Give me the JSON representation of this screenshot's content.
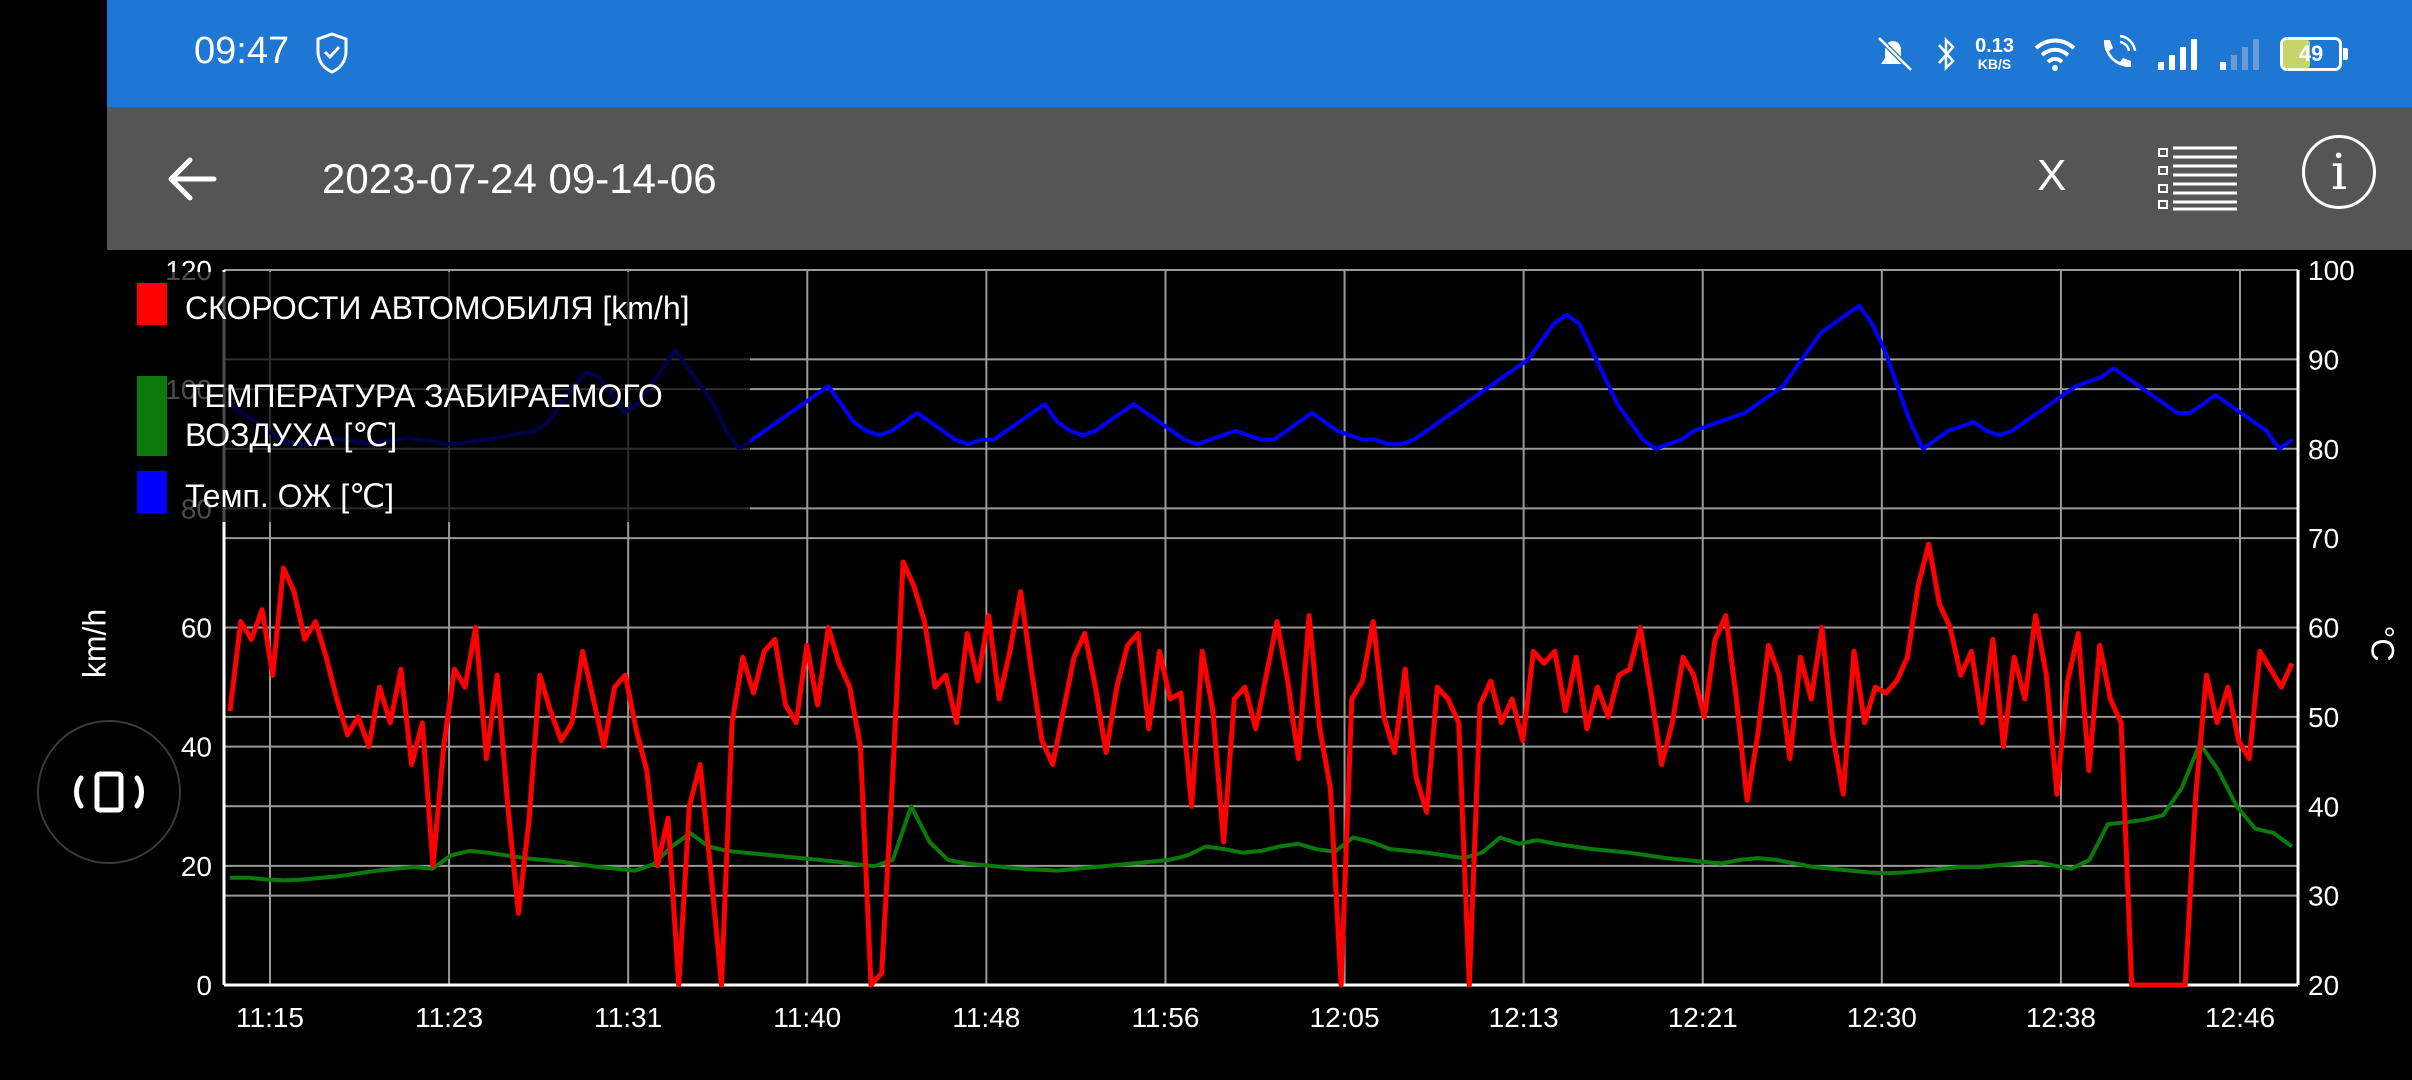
{
  "statusbar": {
    "time": "09:47",
    "net_speed_value": "0.13",
    "net_speed_unit": "KB/S",
    "battery": "49"
  },
  "appbar": {
    "title": "2023-07-24 09-14-06",
    "x_label": "X",
    "info_label": "i"
  },
  "chart_data": {
    "type": "line",
    "x_ticks": [
      "11:15",
      "11:23",
      "11:31",
      "11:40",
      "11:48",
      "11:56",
      "12:05",
      "12:13",
      "12:21",
      "12:30",
      "12:38",
      "12:46"
    ],
    "left_axis": {
      "label": "km/h",
      "range": [
        0,
        120
      ],
      "ticks": [
        0,
        20,
        40,
        60,
        80,
        100,
        120
      ]
    },
    "right_axis": {
      "label": "°C",
      "range": [
        20,
        100
      ],
      "ticks": [
        20,
        30,
        40,
        50,
        60,
        70,
        80,
        90,
        100
      ]
    },
    "grid": true,
    "legend_position": "top-left",
    "series": [
      {
        "name": "СКОРОСТИ АВТОМОБИЛЯ [km/h]",
        "axis": "left",
        "color": "#ff0000",
        "values": [
          46,
          61,
          58,
          63,
          52,
          70,
          66,
          58,
          61,
          55,
          48,
          42,
          45,
          40,
          50,
          44,
          53,
          37,
          44,
          20,
          40,
          53,
          50,
          60,
          38,
          52,
          30,
          12,
          28,
          52,
          46,
          41,
          44,
          56,
          48,
          40,
          50,
          52,
          43,
          36,
          20,
          28,
          0,
          30,
          37,
          19,
          0,
          44,
          55,
          49,
          56,
          58,
          47,
          44,
          57,
          47,
          60,
          54,
          50,
          40,
          0,
          2,
          34,
          71,
          67,
          61,
          50,
          52,
          44,
          59,
          51,
          62,
          48,
          56,
          66,
          53,
          41,
          37,
          46,
          55,
          59,
          50,
          39,
          50,
          57,
          59,
          43,
          56,
          48,
          49,
          30,
          56,
          46,
          24,
          48,
          50,
          43,
          52,
          61,
          51,
          38,
          62,
          43,
          33,
          0,
          48,
          51,
          61,
          45,
          39,
          53,
          35,
          29,
          50,
          48,
          44,
          0,
          47,
          51,
          44,
          48,
          41,
          56,
          54,
          56,
          46,
          55,
          43,
          50,
          45,
          52,
          53,
          60,
          49,
          37,
          44,
          55,
          52,
          45,
          58,
          62,
          48,
          31,
          42,
          57,
          52,
          38,
          55,
          48,
          60,
          42,
          32,
          56,
          44,
          50,
          49,
          51,
          55,
          67,
          74,
          64,
          60,
          52,
          56,
          44,
          58,
          40,
          55,
          48,
          62,
          52,
          32,
          51,
          59,
          36,
          57,
          48,
          44,
          0,
          0,
          0,
          0,
          0,
          0,
          32,
          52,
          44,
          50,
          41,
          38,
          56,
          53,
          50,
          54
        ]
      },
      {
        "name": "ТЕМПЕРАТУРА ЗАБИРАЕМОГО ВОЗДУХА [℃]",
        "axis": "right",
        "color": "#0a7a0a",
        "values": [
          32,
          32,
          31.8,
          31.7,
          31.8,
          32,
          32.2,
          32.5,
          32.8,
          33,
          33.2,
          33,
          34.5,
          35,
          34.8,
          34.5,
          34.2,
          34,
          33.8,
          33.5,
          33.2,
          33,
          32.8,
          33.5,
          35.5,
          37,
          35.5,
          35,
          34.8,
          34.6,
          34.4,
          34.2,
          34,
          33.8,
          33.5,
          33.3,
          34,
          40,
          36,
          34,
          33.6,
          33.4,
          33.2,
          33,
          32.9,
          32.8,
          33,
          33.2,
          33.4,
          33.6,
          33.8,
          34,
          34.5,
          35.5,
          35.2,
          34.8,
          35,
          35.5,
          35.8,
          35.2,
          34.9,
          36.5,
          36,
          35.2,
          35,
          34.8,
          34.5,
          34.2,
          34.8,
          36.5,
          35.8,
          36.2,
          35.8,
          35.5,
          35.2,
          35,
          34.8,
          34.5,
          34.2,
          34,
          33.8,
          33.6,
          34,
          34.2,
          34,
          33.6,
          33.2,
          33,
          32.8,
          32.6,
          32.5,
          32.6,
          32.8,
          33,
          33.2,
          33.2,
          33.4,
          33.6,
          33.8,
          33.4,
          33,
          34,
          38,
          38.2,
          38.5,
          39,
          42,
          47,
          44,
          40,
          37.5,
          37,
          35.5
        ]
      },
      {
        "name": "Темп. ОЖ [℃]",
        "axis": "right",
        "color": "#0000ff",
        "values": [
          85,
          84,
          83,
          82,
          81,
          80.5,
          80.5,
          81,
          81.2,
          81,
          80.8,
          80.6,
          80.8,
          81,
          81.2,
          81,
          80.8,
          80.5,
          80.6,
          80.8,
          81,
          81.2,
          81.5,
          81.8,
          82,
          83,
          85,
          87,
          88.5,
          88,
          86,
          84,
          85,
          87,
          89,
          91,
          89,
          87,
          85,
          82,
          80,
          81,
          82,
          83,
          84,
          85,
          86,
          87,
          85,
          83,
          82,
          81.5,
          82,
          83,
          84,
          83,
          82,
          81,
          80.5,
          81,
          81,
          82,
          83,
          84,
          85,
          83,
          82,
          81.5,
          82,
          83,
          84,
          85,
          84,
          83,
          82,
          81,
          80.5,
          81,
          81.5,
          82,
          81.5,
          81,
          81,
          82,
          83,
          84,
          83,
          82,
          81.5,
          81,
          81,
          80.5,
          80.5,
          81,
          82,
          83,
          84,
          85,
          86,
          87,
          88,
          89,
          90,
          92,
          94,
          95,
          94,
          91,
          88,
          85,
          83,
          81,
          80,
          80.5,
          81,
          82,
          82.5,
          83,
          83.5,
          84,
          85,
          86,
          87,
          89,
          91,
          93,
          94,
          95,
          96,
          94,
          91,
          87,
          83,
          80,
          81,
          82,
          82.5,
          83,
          82,
          81.5,
          82,
          83,
          84,
          85,
          86,
          87,
          87.5,
          88,
          89,
          88,
          87,
          86,
          85,
          84,
          84,
          85,
          86,
          85,
          84,
          83,
          82,
          80,
          81
        ]
      }
    ]
  }
}
